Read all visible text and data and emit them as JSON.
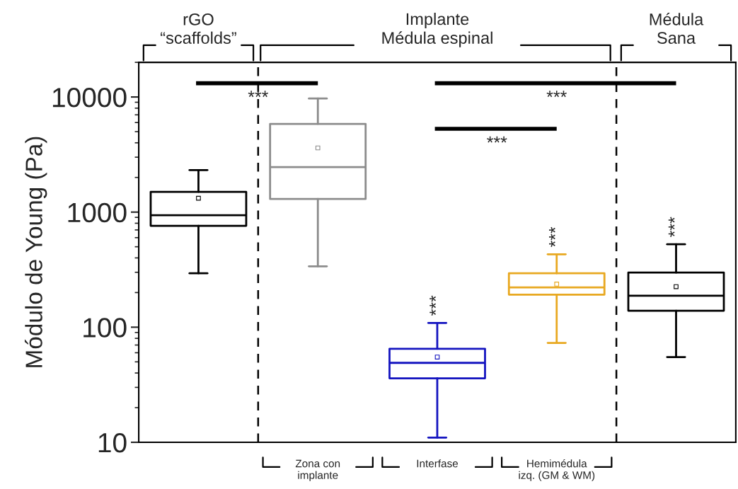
{
  "chart_data": {
    "type": "box",
    "ylabel": "Módulo de Young (Pa)",
    "categories": [
      "rGO\n“scaffolds”",
      "Zona con\nimplante",
      "Interfase",
      "Hemimédula\nizq. (GM & WM)",
      "Médula\nSana"
    ],
    "colors": [
      "#000000",
      "#8c8c8c",
      "#1414c0",
      "#e8a820",
      "#000000"
    ],
    "boxes": [
      {
        "low": 294,
        "q1": 760,
        "median": 940,
        "q3": 1500,
        "high": 2320,
        "mean": 1320
      },
      {
        "low": 338,
        "q1": 1300,
        "median": 2460,
        "q3": 5840,
        "high": 9700,
        "mean": 3610
      },
      {
        "low": 11,
        "q1": 36,
        "median": 49,
        "q3": 65,
        "high": 109,
        "mean": 55
      },
      {
        "low": 73,
        "q1": 192,
        "median": 222,
        "q3": 294,
        "high": 430,
        "mean": 237
      },
      {
        "low": 55,
        "q1": 139,
        "median": 188,
        "q3": 298,
        "high": 525,
        "mean": 225
      }
    ],
    "log": true,
    "ylim": [
      10,
      20000
    ],
    "yticks": [
      10,
      100,
      1000,
      10000
    ],
    "grid": false,
    "legend": false,
    "marker": "square",
    "annotations": [
      "Implante\nMédula espinal",
      "***",
      "***",
      "***",
      "***",
      "***",
      "***"
    ]
  }
}
